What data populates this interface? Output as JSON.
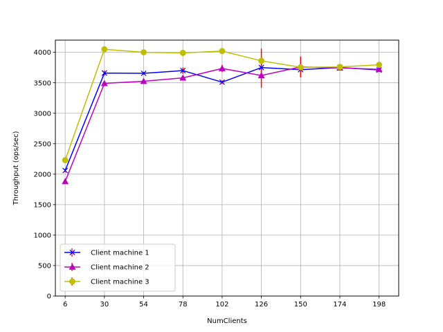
{
  "chart_data": {
    "type": "line",
    "title": "",
    "xlabel": "NumClients",
    "ylabel": "Throughput (ops/sec)",
    "x": [
      6,
      30,
      54,
      78,
      102,
      126,
      150,
      174,
      198
    ],
    "xlim": [
      0,
      210
    ],
    "ylim": [
      0,
      4200
    ],
    "yticks": [
      0,
      500,
      1000,
      1500,
      2000,
      2500,
      3000,
      3500,
      4000
    ],
    "grid": true,
    "legend_position": "lower-left",
    "error_bar_color": "#ff0000",
    "series": [
      {
        "name": "Client machine 1",
        "color": "#0000ff",
        "marker": "x",
        "values": [
          2060,
          3660,
          3655,
          3700,
          3510,
          3750,
          3715,
          3750,
          3710
        ],
        "errors": [
          30,
          40,
          25,
          50,
          30,
          40,
          40,
          30,
          30
        ]
      },
      {
        "name": "Client machine 2",
        "color": "#bf00bf",
        "marker": "triangle",
        "values": [
          1880,
          3490,
          3525,
          3580,
          3735,
          3620,
          3760,
          3745,
          3720
        ],
        "errors": [
          20,
          30,
          20,
          40,
          60,
          200,
          170,
          30,
          40
        ]
      },
      {
        "name": "Client machine 3",
        "color": "#bfbf00",
        "marker": "circle",
        "values": [
          2230,
          4050,
          4000,
          3990,
          4020,
          3860,
          3755,
          3760,
          3795
        ],
        "errors": [
          20,
          25,
          20,
          30,
          30,
          200,
          30,
          20,
          20
        ]
      }
    ]
  }
}
